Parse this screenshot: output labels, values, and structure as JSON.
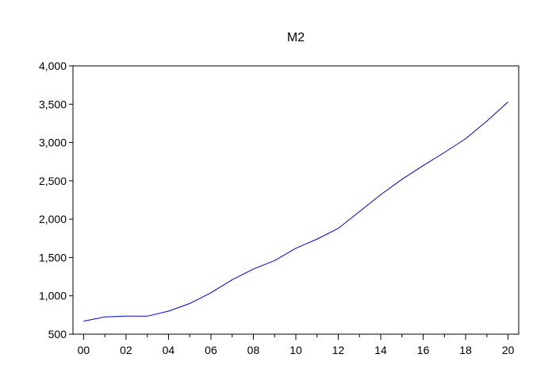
{
  "chart_data": {
    "type": "line",
    "title": "M2",
    "xlabel": "",
    "ylabel": "",
    "x": [
      0,
      1,
      2,
      3,
      4,
      5,
      6,
      7,
      8,
      9,
      10,
      11,
      12,
      13,
      14,
      15,
      16,
      17,
      18,
      19,
      20
    ],
    "xlim": [
      -0.5,
      20.5
    ],
    "xticks": [
      0,
      2,
      4,
      6,
      8,
      10,
      12,
      14,
      16,
      18,
      20
    ],
    "xtick_labels": [
      "00",
      "02",
      "04",
      "06",
      "08",
      "10",
      "12",
      "14",
      "16",
      "18",
      "20"
    ],
    "ylim": [
      500,
      4000
    ],
    "yticks": [
      500,
      1000,
      1500,
      2000,
      2500,
      3000,
      3500,
      4000
    ],
    "ytick_labels": [
      "500",
      "1,000",
      "1,500",
      "2,000",
      "2,500",
      "3,000",
      "3,500",
      "4,000"
    ],
    "grid": false,
    "series": [
      {
        "color": "#0000cc",
        "values": [
          670,
          725,
          735,
          735,
          800,
          900,
          1040,
          1210,
          1350,
          1460,
          1620,
          1740,
          1880,
          2100,
          2320,
          2520,
          2700,
          2870,
          3050,
          3280,
          3530
        ]
      }
    ]
  }
}
